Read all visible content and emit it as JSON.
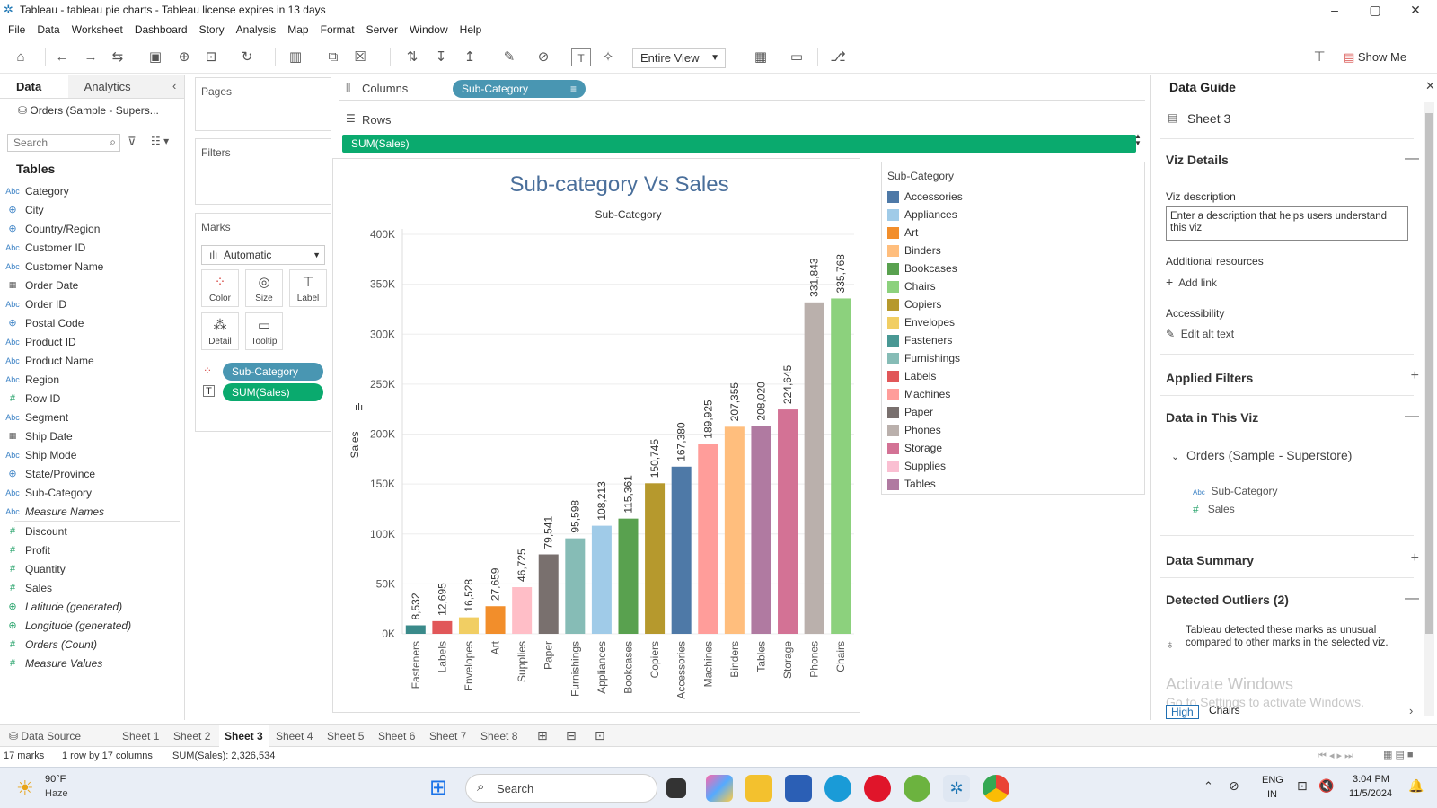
{
  "window": {
    "title": "Tableau - tableau pie charts - Tableau license expires in 13 days",
    "controls": [
      "–",
      "▢",
      "✕"
    ]
  },
  "menu": [
    "File",
    "Data",
    "Worksheet",
    "Dashboard",
    "Story",
    "Analysis",
    "Map",
    "Format",
    "Server",
    "Window",
    "Help"
  ],
  "toolbar": {
    "view_select": "Entire View",
    "show_me": "Show Me"
  },
  "left_pane": {
    "tabs": {
      "data": "Data",
      "analytics": "Analytics"
    },
    "datasource": "Orders (Sample - Supers...",
    "search_placeholder": "Search",
    "tables_label": "Tables",
    "dimensions": [
      {
        "type": "Abc",
        "name": "Category"
      },
      {
        "type": "geo",
        "name": "City"
      },
      {
        "type": "geo",
        "name": "Country/Region"
      },
      {
        "type": "Abc",
        "name": "Customer ID"
      },
      {
        "type": "Abc",
        "name": "Customer Name"
      },
      {
        "type": "date",
        "name": "Order Date"
      },
      {
        "type": "Abc",
        "name": "Order ID"
      },
      {
        "type": "geo",
        "name": "Postal Code"
      },
      {
        "type": "Abc",
        "name": "Product ID"
      },
      {
        "type": "Abc",
        "name": "Product Name"
      },
      {
        "type": "Abc",
        "name": "Region"
      },
      {
        "type": "#",
        "name": "Row ID"
      },
      {
        "type": "Abc",
        "name": "Segment"
      },
      {
        "type": "date",
        "name": "Ship Date"
      },
      {
        "type": "Abc",
        "name": "Ship Mode"
      },
      {
        "type": "geo",
        "name": "State/Province"
      },
      {
        "type": "Abc",
        "name": "Sub-Category"
      },
      {
        "type": "Abc",
        "name": "Measure Names",
        "italic": true
      }
    ],
    "measures": [
      {
        "type": "#",
        "name": "Discount"
      },
      {
        "type": "#",
        "name": "Profit"
      },
      {
        "type": "#",
        "name": "Quantity"
      },
      {
        "type": "#",
        "name": "Sales"
      },
      {
        "type": "geo",
        "name": "Latitude (generated)",
        "italic": true
      },
      {
        "type": "geo",
        "name": "Longitude (generated)",
        "italic": true
      },
      {
        "type": "#",
        "name": "Orders (Count)",
        "italic": true
      },
      {
        "type": "#",
        "name": "Measure Values",
        "italic": true
      }
    ]
  },
  "cards": {
    "pages": "Pages",
    "filters": "Filters",
    "marks": "Marks",
    "mark_type": "Automatic",
    "mark_buttons": [
      "Color",
      "Size",
      "Label",
      "Detail",
      "Tooltip"
    ],
    "mark_pills": [
      "Sub-Category",
      "SUM(Sales)"
    ]
  },
  "shelves": {
    "columns_label": "Columns",
    "columns_pill": "Sub-Category",
    "rows_label": "Rows",
    "rows_pill": "SUM(Sales)"
  },
  "chart_data": {
    "type": "bar",
    "title": "Sub-category Vs Sales",
    "header": "Sub-Category",
    "xlabel": "",
    "ylabel": "Sales",
    "ylim": [
      0,
      400000
    ],
    "yticks": [
      "0K",
      "50K",
      "100K",
      "150K",
      "200K",
      "250K",
      "300K",
      "350K",
      "400K"
    ],
    "categories": [
      "Fasteners",
      "Labels",
      "Envelopes",
      "Art",
      "Supplies",
      "Paper",
      "Furnishings",
      "Appliances",
      "Bookcases",
      "Copiers",
      "Accessories",
      "Machines",
      "Binders",
      "Tables",
      "Storage",
      "Phones",
      "Chairs"
    ],
    "values": [
      8532,
      12695,
      16528,
      27659,
      46725,
      79541,
      95598,
      108213,
      115361,
      150745,
      167380,
      189925,
      207355,
      208020,
      224645,
      331843,
      335768
    ],
    "labels": [
      "8,532",
      "12,695",
      "16,528",
      "27,659",
      "46,725",
      "79,541",
      "95,598",
      "108,213",
      "115,361",
      "150,745",
      "167,380",
      "189,925",
      "207,355",
      "208,020",
      "224,645",
      "331,843",
      "335,768"
    ],
    "colors": [
      "#3a8a8a",
      "#e15759",
      "#f1ce63",
      "#f28e2b",
      "#ffbec7",
      "#79706e",
      "#86bcb6",
      "#a0cbe8",
      "#59a14f",
      "#b6992d",
      "#4e79a7",
      "#ff9d9a",
      "#ffbe7d",
      "#b07aa1",
      "#d37295",
      "#bab0ac",
      "#8cd17d"
    ]
  },
  "legend": {
    "title": "Sub-Category",
    "items": [
      {
        "name": "Accessories",
        "color": "#4e79a7"
      },
      {
        "name": "Appliances",
        "color": "#a0cbe8"
      },
      {
        "name": "Art",
        "color": "#f28e2b"
      },
      {
        "name": "Binders",
        "color": "#ffbe7d"
      },
      {
        "name": "Bookcases",
        "color": "#59a14f"
      },
      {
        "name": "Chairs",
        "color": "#8cd17d"
      },
      {
        "name": "Copiers",
        "color": "#b6992d"
      },
      {
        "name": "Envelopes",
        "color": "#f1ce63"
      },
      {
        "name": "Fasteners",
        "color": "#499894"
      },
      {
        "name": "Furnishings",
        "color": "#86bcb6"
      },
      {
        "name": "Labels",
        "color": "#e15759"
      },
      {
        "name": "Machines",
        "color": "#ff9d9a"
      },
      {
        "name": "Paper",
        "color": "#79706e"
      },
      {
        "name": "Phones",
        "color": "#bab0ac"
      },
      {
        "name": "Storage",
        "color": "#d37295"
      },
      {
        "name": "Supplies",
        "color": "#fabfd2"
      },
      {
        "name": "Tables",
        "color": "#b07aa1"
      }
    ]
  },
  "guide": {
    "title": "Data Guide",
    "sheet": "Sheet 3",
    "viz_details": "Viz Details",
    "viz_description_label": "Viz description",
    "viz_description_placeholder": "Enter a description that helps users understand this viz",
    "additional_resources": "Additional resources",
    "add_link": "Add link",
    "accessibility": "Accessibility",
    "edit_alt": "Edit alt text",
    "applied_filters": "Applied Filters",
    "data_in_viz": "Data in This Viz",
    "datasource": "Orders (Sample - Superstore)",
    "fields": [
      "Sub-Category",
      "Sales"
    ],
    "data_summary": "Data Summary",
    "outliers": "Detected Outliers (2)",
    "outliers_text": "Tableau detected these marks as unusual compared to other marks in the selected viz.",
    "high_badge": "High",
    "high_item": "Chairs",
    "watermark1": "Activate Windows",
    "watermark2": "Go to Settings to activate Windows."
  },
  "sheet_tabs": {
    "datasource": "Data Source",
    "sheets": [
      "Sheet 1",
      "Sheet 2",
      "Sheet 3",
      "Sheet 4",
      "Sheet 5",
      "Sheet 6",
      "Sheet 7",
      "Sheet 8"
    ],
    "active": "Sheet 3"
  },
  "status": {
    "marks": "17 marks",
    "dims": "1 row by 17 columns",
    "sum": "SUM(Sales): 2,326,534"
  },
  "taskbar": {
    "temp": "90°F",
    "weather": "Haze",
    "search": "Search",
    "lang1": "ENG",
    "lang2": "IN",
    "time": "3:04 PM",
    "date": "11/5/2024"
  }
}
